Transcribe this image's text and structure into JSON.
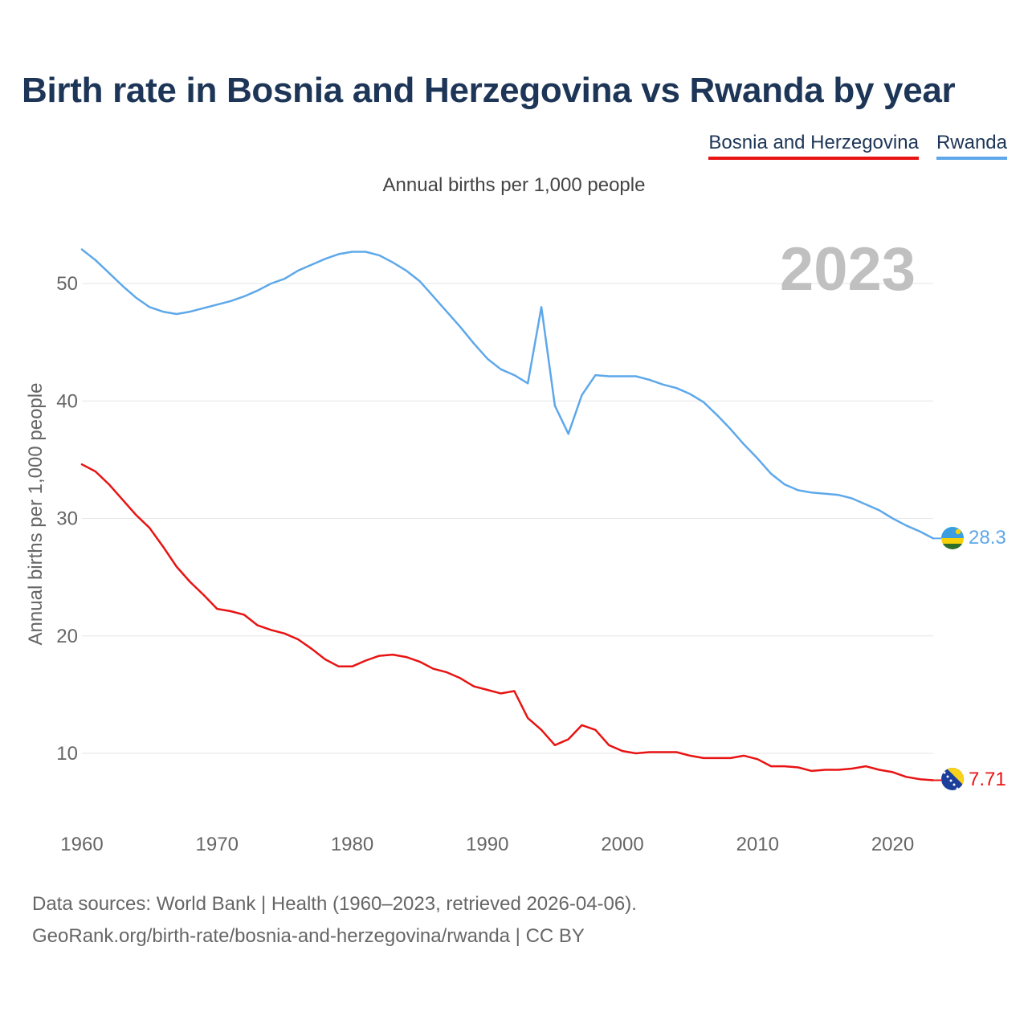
{
  "title": "Birth rate in Bosnia and Herzegovina vs Rwanda by year",
  "subtitle": "Annual births per 1,000 people",
  "year_label": "2023",
  "legend": {
    "items": [
      {
        "label": "Bosnia and Herzegovina",
        "color": "#e81313"
      },
      {
        "label": "Rwanda",
        "color": "#5ea8ea"
      }
    ]
  },
  "footer": {
    "line1": "Data sources: World Bank | Health (1960–2023, retrieved 2026-04-06).",
    "line2": "GeoRank.org/birth-rate/bosnia-and-herzegovina/rwanda | CC BY"
  },
  "chart_data": {
    "type": "line",
    "title": "Birth rate in Bosnia and Herzegovina vs Rwanda by year",
    "xlabel": "",
    "ylabel": "Annual births per 1,000 people",
    "xlim": [
      1960,
      2023
    ],
    "ylim": [
      5,
      55
    ],
    "x_ticks": [
      1960,
      1970,
      1980,
      1990,
      2000,
      2010,
      2020
    ],
    "y_ticks": [
      10,
      20,
      30,
      40,
      50
    ],
    "grid": true,
    "x": [
      1960,
      1961,
      1962,
      1963,
      1964,
      1965,
      1966,
      1967,
      1968,
      1969,
      1970,
      1971,
      1972,
      1973,
      1974,
      1975,
      1976,
      1977,
      1978,
      1979,
      1980,
      1981,
      1982,
      1983,
      1984,
      1985,
      1986,
      1987,
      1988,
      1989,
      1990,
      1991,
      1992,
      1993,
      1994,
      1995,
      1996,
      1997,
      1998,
      1999,
      2000,
      2001,
      2002,
      2003,
      2004,
      2005,
      2006,
      2007,
      2008,
      2009,
      2010,
      2011,
      2012,
      2013,
      2014,
      2015,
      2016,
      2017,
      2018,
      2019,
      2020,
      2021,
      2022,
      2023
    ],
    "series": [
      {
        "name": "Rwanda",
        "color": "#5ea8ea",
        "end_label": "28.3",
        "values": [
          52.9,
          52.0,
          50.9,
          49.8,
          48.8,
          48.0,
          47.6,
          47.4,
          47.6,
          47.9,
          48.2,
          48.5,
          48.9,
          49.4,
          50.0,
          50.4,
          51.1,
          51.6,
          52.1,
          52.5,
          52.7,
          52.7,
          52.4,
          51.8,
          51.1,
          50.2,
          48.9,
          47.6,
          46.3,
          44.9,
          43.6,
          42.7,
          42.2,
          41.5,
          48.0,
          39.6,
          37.2,
          40.5,
          42.2,
          42.1,
          42.1,
          42.1,
          41.8,
          41.4,
          41.1,
          40.6,
          39.9,
          38.8,
          37.6,
          36.3,
          35.1,
          33.8,
          32.9,
          32.4,
          32.2,
          32.1,
          32.0,
          31.7,
          31.2,
          30.7,
          30.0,
          29.4,
          28.9,
          28.3
        ]
      },
      {
        "name": "Bosnia and Herzegovina",
        "color": "#e81313",
        "end_label": "7.71",
        "values": [
          34.6,
          34.0,
          32.9,
          31.6,
          30.3,
          29.2,
          27.6,
          25.9,
          24.6,
          23.5,
          22.3,
          22.1,
          21.8,
          20.9,
          20.5,
          20.2,
          19.7,
          18.9,
          18.0,
          17.4,
          17.4,
          17.9,
          18.3,
          18.4,
          18.2,
          17.8,
          17.2,
          16.9,
          16.4,
          15.7,
          15.4,
          15.1,
          15.3,
          13.0,
          12.0,
          10.7,
          11.2,
          12.4,
          12.0,
          10.7,
          10.2,
          10.0,
          10.1,
          10.1,
          10.1,
          9.8,
          9.6,
          9.6,
          9.6,
          9.8,
          9.5,
          8.9,
          8.9,
          8.8,
          8.5,
          8.6,
          8.6,
          8.7,
          8.9,
          8.6,
          8.4,
          8.0,
          7.8,
          7.71
        ]
      }
    ]
  }
}
